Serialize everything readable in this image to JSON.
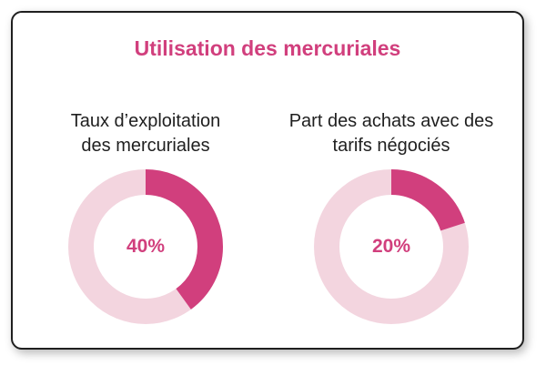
{
  "title": "Utilisation des mercuriales",
  "chart_data": [
    {
      "type": "pie",
      "title_lines": [
        "Taux d’exploitation",
        "des mercuriales"
      ],
      "value": 40,
      "value_label": "40%",
      "colors": {
        "filled": "#d13f7d",
        "remaining": "#f3d5df"
      }
    },
    {
      "type": "pie",
      "title_lines": [
        "Part des achats avec des",
        "tarifs négociés"
      ],
      "value": 20,
      "value_label": "20%",
      "colors": {
        "filled": "#d13f7d",
        "remaining": "#f3d5df"
      }
    }
  ]
}
